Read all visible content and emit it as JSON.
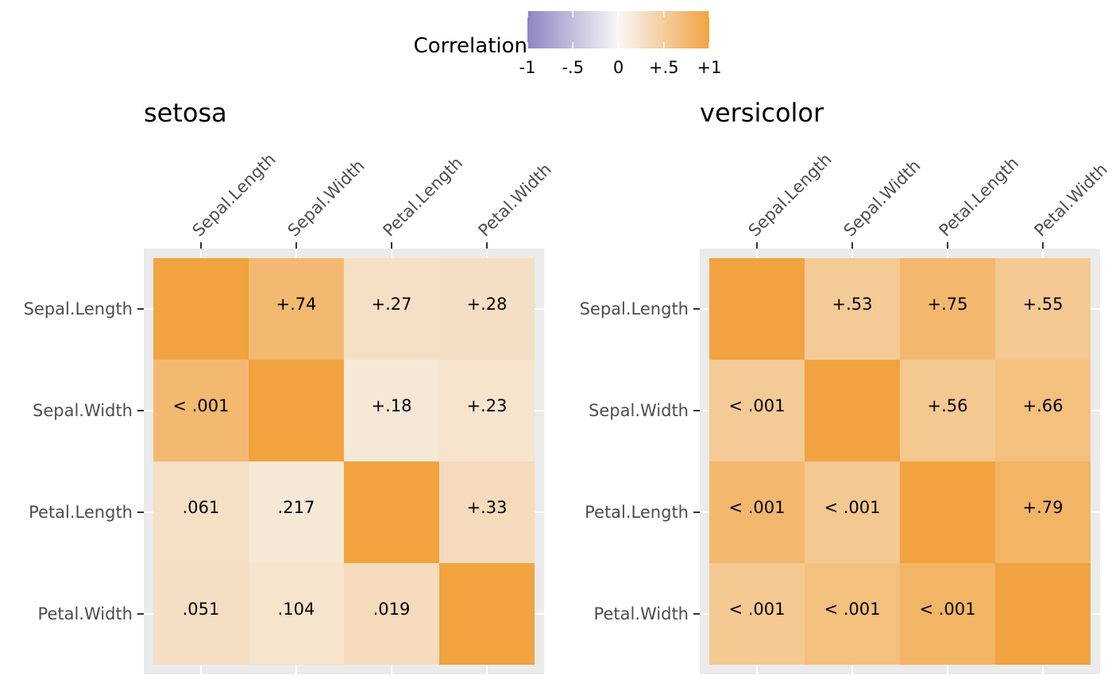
{
  "chart_data": {
    "type": "heatmap",
    "legend": {
      "title": "Correlation",
      "position": "top",
      "ticks": [
        {
          "value": -1,
          "label": "-1"
        },
        {
          "value": -0.5,
          "label": "-.5"
        },
        {
          "value": 0,
          "label": "0"
        },
        {
          "value": 0.5,
          "label": "+.5"
        },
        {
          "value": 1,
          "label": "+1"
        }
      ],
      "colors": {
        "low": "#8f85c1",
        "mid": "#f7f7f7",
        "high": "#f1a340"
      }
    },
    "variables": [
      "Sepal.Length",
      "Sepal.Width",
      "Petal.Length",
      "Petal.Width"
    ],
    "grid": true,
    "panels": [
      {
        "title": "setosa",
        "cells": [
          {
            "row": 0,
            "col": 0,
            "r": 1.0,
            "label": ""
          },
          {
            "row": 0,
            "col": 1,
            "r": 0.74,
            "label": "+.74"
          },
          {
            "row": 0,
            "col": 2,
            "r": 0.27,
            "label": "+.27"
          },
          {
            "row": 0,
            "col": 3,
            "r": 0.28,
            "label": "+.28"
          },
          {
            "row": 1,
            "col": 0,
            "r": 0.74,
            "label": "< .001"
          },
          {
            "row": 1,
            "col": 1,
            "r": 1.0,
            "label": ""
          },
          {
            "row": 1,
            "col": 2,
            "r": 0.18,
            "label": "+.18"
          },
          {
            "row": 1,
            "col": 3,
            "r": 0.23,
            "label": "+.23"
          },
          {
            "row": 2,
            "col": 0,
            "r": 0.27,
            "label": ".061"
          },
          {
            "row": 2,
            "col": 1,
            "r": 0.18,
            "label": ".217"
          },
          {
            "row": 2,
            "col": 2,
            "r": 1.0,
            "label": ""
          },
          {
            "row": 2,
            "col": 3,
            "r": 0.33,
            "label": "+.33"
          },
          {
            "row": 3,
            "col": 0,
            "r": 0.28,
            "label": ".051"
          },
          {
            "row": 3,
            "col": 1,
            "r": 0.23,
            "label": ".104"
          },
          {
            "row": 3,
            "col": 2,
            "r": 0.33,
            "label": ".019"
          },
          {
            "row": 3,
            "col": 3,
            "r": 1.0,
            "label": ""
          }
        ]
      },
      {
        "title": "versicolor",
        "cells": [
          {
            "row": 0,
            "col": 0,
            "r": 1.0,
            "label": ""
          },
          {
            "row": 0,
            "col": 1,
            "r": 0.53,
            "label": "+.53"
          },
          {
            "row": 0,
            "col": 2,
            "r": 0.75,
            "label": "+.75"
          },
          {
            "row": 0,
            "col": 3,
            "r": 0.55,
            "label": "+.55"
          },
          {
            "row": 1,
            "col": 0,
            "r": 0.53,
            "label": "< .001"
          },
          {
            "row": 1,
            "col": 1,
            "r": 1.0,
            "label": ""
          },
          {
            "row": 1,
            "col": 2,
            "r": 0.56,
            "label": "+.56"
          },
          {
            "row": 1,
            "col": 3,
            "r": 0.66,
            "label": "+.66"
          },
          {
            "row": 2,
            "col": 0,
            "r": 0.75,
            "label": "< .001"
          },
          {
            "row": 2,
            "col": 1,
            "r": 0.56,
            "label": "< .001"
          },
          {
            "row": 2,
            "col": 2,
            "r": 1.0,
            "label": ""
          },
          {
            "row": 2,
            "col": 3,
            "r": 0.79,
            "label": "+.79"
          },
          {
            "row": 3,
            "col": 0,
            "r": 0.55,
            "label": "< .001"
          },
          {
            "row": 3,
            "col": 1,
            "r": 0.66,
            "label": "< .001"
          },
          {
            "row": 3,
            "col": 2,
            "r": 0.79,
            "label": "< .001"
          },
          {
            "row": 3,
            "col": 3,
            "r": 1.0,
            "label": ""
          }
        ]
      }
    ]
  }
}
